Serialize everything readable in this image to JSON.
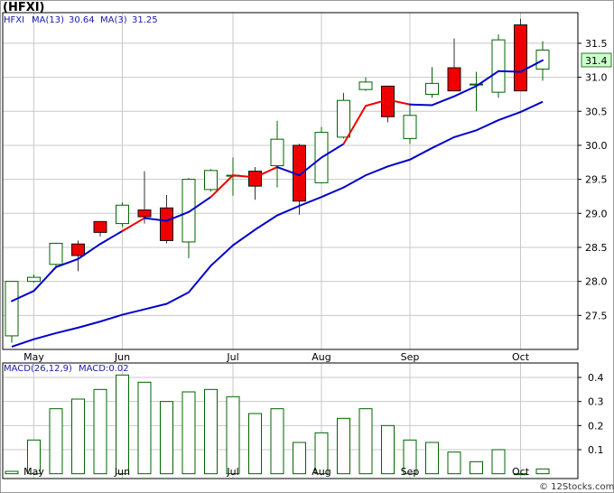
{
  "chart_data": {
    "type": "candlestick",
    "title": "(HFXI)",
    "legend": {
      "symbol": "HFXI",
      "ma13_label": "MA(13)",
      "ma13_value": "30.64",
      "ma3_label": "MA(3)",
      "ma3_value": "31.25"
    },
    "last_price": "31.4",
    "watermark": "© 12Stocks.com",
    "y_axis": {
      "ticks": [
        27.5,
        28.0,
        28.5,
        29.0,
        29.5,
        30.0,
        30.5,
        31.0,
        31.5
      ],
      "tick_labels": [
        "27.5",
        "28.0",
        "28.5",
        "29.0",
        "29.5",
        "30.0",
        "30.5",
        "31.0",
        "31.5"
      ],
      "ylim": [
        27.0,
        31.95
      ]
    },
    "x_axis": {
      "months": [
        "May",
        "Jun",
        "Jul",
        "Aug",
        "Sep",
        "Oct"
      ],
      "month_index": [
        1,
        5,
        10,
        14,
        18,
        23
      ]
    },
    "candles": [
      {
        "o": 27.2,
        "h": 28.0,
        "l": 27.1,
        "c": 28.0
      },
      {
        "o": 28.0,
        "h": 28.1,
        "l": 27.98,
        "c": 28.06
      },
      {
        "o": 28.25,
        "h": 28.57,
        "l": 28.22,
        "c": 28.56
      },
      {
        "o": 28.55,
        "h": 28.6,
        "l": 28.15,
        "c": 28.38
      },
      {
        "o": 28.88,
        "h": 28.88,
        "l": 28.66,
        "c": 28.72
      },
      {
        "o": 28.85,
        "h": 29.16,
        "l": 28.8,
        "c": 29.12
      },
      {
        "o": 29.05,
        "h": 29.62,
        "l": 28.85,
        "c": 28.95
      },
      {
        "o": 29.08,
        "h": 29.27,
        "l": 28.56,
        "c": 28.6
      },
      {
        "o": 28.58,
        "h": 29.52,
        "l": 28.34,
        "c": 29.5
      },
      {
        "o": 29.35,
        "h": 29.65,
        "l": 29.32,
        "c": 29.63
      },
      {
        "o": 29.55,
        "h": 29.82,
        "l": 29.26,
        "c": 29.56
      },
      {
        "o": 29.62,
        "h": 29.68,
        "l": 29.2,
        "c": 29.4
      },
      {
        "o": 29.7,
        "h": 30.36,
        "l": 29.38,
        "c": 30.09
      },
      {
        "o": 30.0,
        "h": 30.02,
        "l": 28.98,
        "c": 29.18
      },
      {
        "o": 29.45,
        "h": 30.27,
        "l": 29.44,
        "c": 30.19
      },
      {
        "o": 30.12,
        "h": 30.77,
        "l": 30.1,
        "c": 30.66
      },
      {
        "o": 30.82,
        "h": 31.0,
        "l": 30.8,
        "c": 30.93
      },
      {
        "o": 30.87,
        "h": 30.87,
        "l": 30.34,
        "c": 30.42
      },
      {
        "o": 30.1,
        "h": 30.62,
        "l": 30.02,
        "c": 30.44
      },
      {
        "o": 30.75,
        "h": 31.15,
        "l": 30.7,
        "c": 30.91
      },
      {
        "o": 31.14,
        "h": 31.57,
        "l": 30.8,
        "c": 30.8
      },
      {
        "o": 30.9,
        "h": 31.08,
        "l": 30.5,
        "c": 30.9
      },
      {
        "o": 30.78,
        "h": 31.63,
        "l": 30.7,
        "c": 31.55
      },
      {
        "o": 31.77,
        "h": 31.86,
        "l": 30.81,
        "c": 30.8
      },
      {
        "o": 31.12,
        "h": 31.53,
        "l": 30.95,
        "c": 31.4
      }
    ],
    "ma3": [
      27.71,
      27.86,
      28.21,
      28.33,
      28.55,
      28.74,
      28.93,
      28.89,
      29.02,
      29.24,
      29.56,
      29.53,
      29.68,
      29.56,
      29.82,
      30.02,
      30.58,
      30.67,
      30.6,
      30.59,
      30.72,
      30.87,
      31.09,
      31.08,
      31.25
    ],
    "ma13": [
      27.04,
      27.15,
      27.24,
      27.32,
      27.41,
      27.51,
      27.59,
      27.67,
      27.84,
      28.23,
      28.53,
      28.76,
      28.97,
      29.11,
      29.24,
      29.38,
      29.56,
      29.69,
      29.79,
      29.96,
      30.12,
      30.22,
      30.37,
      30.49,
      30.64
    ],
    "ma3_colors": [
      "blue",
      "blue",
      "blue",
      "blue",
      "blue",
      "blue",
      "red",
      "blue",
      "blue",
      "blue",
      "red",
      "red",
      "red",
      "blue",
      "blue",
      "blue",
      "red",
      "red",
      "red",
      "blue",
      "blue",
      "blue",
      "blue",
      "blue",
      "blue"
    ],
    "macd": {
      "label": "MACD(26,12,9)",
      "value_label": "MACD:0.02",
      "ticks": [
        0.1,
        0.2,
        0.3,
        0.4
      ],
      "tick_labels": [
        "0.1",
        "0.2",
        "0.3",
        "0.4"
      ],
      "ylim": [
        -0.02,
        0.46
      ],
      "values": [
        0.01,
        0.14,
        0.27,
        0.31,
        0.35,
        0.41,
        0.38,
        0.3,
        0.34,
        0.35,
        0.32,
        0.25,
        0.27,
        0.13,
        0.17,
        0.23,
        0.27,
        0.2,
        0.14,
        0.13,
        0.09,
        0.05,
        0.1,
        0.0,
        0.02
      ]
    },
    "colors": {
      "up_fill": "#ffffff",
      "up_stroke": "#006400",
      "down_fill": "#ee0000",
      "ma3": "#0000cc",
      "ma3_alt": "#ee0000",
      "ma13": "#0000cc",
      "macd_bar": "#006400",
      "grid": "#c8c8c8",
      "price_tag_bg": "#ccffcc"
    }
  }
}
